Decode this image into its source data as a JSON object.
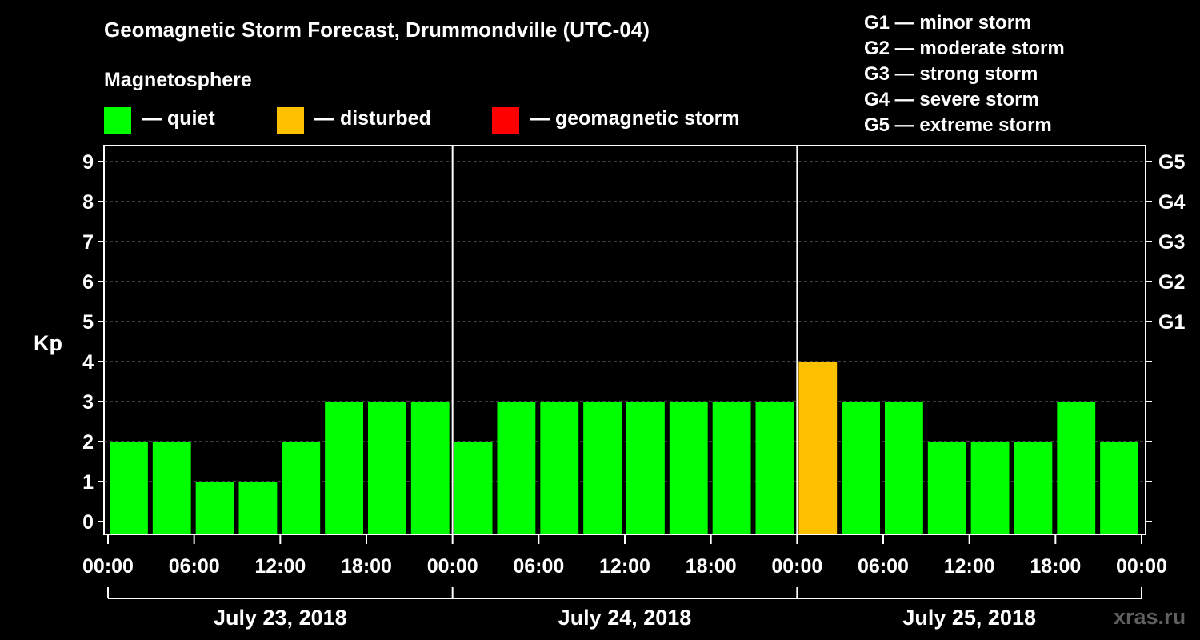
{
  "title": "Geomagnetic Storm Forecast, Drummondville (UTC-04)",
  "magnetosphere_label": "Magnetosphere",
  "legend": [
    {
      "label": "— quiet",
      "color": "#00ff00"
    },
    {
      "label": "— disturbed",
      "color": "#ffc000"
    },
    {
      "label": "— geomagnetic storm",
      "color": "#ff0000"
    }
  ],
  "storm_levels": [
    "G1 — minor storm",
    "G2 — moderate storm",
    "G3 — strong storm",
    "G4 — severe storm",
    "G5 — extreme storm"
  ],
  "watermark": "xras.ru",
  "chart_data": {
    "type": "bar",
    "ylabel": "Kp",
    "ylim": [
      0,
      9
    ],
    "yticks": [
      "0",
      "1",
      "2",
      "3",
      "4",
      "5",
      "6",
      "7",
      "8",
      "9"
    ],
    "right_axis_labels": [
      {
        "kp": 5,
        "label": "G1"
      },
      {
        "kp": 6,
        "label": "G2"
      },
      {
        "kp": 7,
        "label": "G3"
      },
      {
        "kp": 8,
        "label": "G4"
      },
      {
        "kp": 9,
        "label": "G5"
      }
    ],
    "xticks": [
      "00:00",
      "06:00",
      "12:00",
      "18:00",
      "00:00",
      "06:00",
      "12:00",
      "18:00",
      "00:00",
      "06:00",
      "12:00",
      "18:00",
      "00:00"
    ],
    "days": [
      "July 23, 2018",
      "July 24, 2018",
      "July 25, 2018"
    ],
    "hours_range": [
      0,
      72
    ],
    "grid": "horizontal dashed",
    "bars": [
      {
        "start_hour": 0,
        "end_hour": 3,
        "kp": 2,
        "status": "quiet"
      },
      {
        "start_hour": 3,
        "end_hour": 6,
        "kp": 2,
        "status": "quiet"
      },
      {
        "start_hour": 6,
        "end_hour": 9,
        "kp": 1,
        "status": "quiet"
      },
      {
        "start_hour": 9,
        "end_hour": 12,
        "kp": 1,
        "status": "quiet"
      },
      {
        "start_hour": 12,
        "end_hour": 15,
        "kp": 2,
        "status": "quiet"
      },
      {
        "start_hour": 15,
        "end_hour": 18,
        "kp": 3,
        "status": "quiet"
      },
      {
        "start_hour": 18,
        "end_hour": 21,
        "kp": 3,
        "status": "quiet"
      },
      {
        "start_hour": 21,
        "end_hour": 24,
        "kp": 3,
        "status": "quiet"
      },
      {
        "start_hour": 24,
        "end_hour": 27,
        "kp": 2,
        "status": "quiet"
      },
      {
        "start_hour": 27,
        "end_hour": 30,
        "kp": 3,
        "status": "quiet"
      },
      {
        "start_hour": 30,
        "end_hour": 33,
        "kp": 3,
        "status": "quiet"
      },
      {
        "start_hour": 33,
        "end_hour": 36,
        "kp": 3,
        "status": "quiet"
      },
      {
        "start_hour": 36,
        "end_hour": 39,
        "kp": 3,
        "status": "quiet"
      },
      {
        "start_hour": 39,
        "end_hour": 42,
        "kp": 3,
        "status": "quiet"
      },
      {
        "start_hour": 42,
        "end_hour": 45,
        "kp": 3,
        "status": "quiet"
      },
      {
        "start_hour": 45,
        "end_hour": 48,
        "kp": 3,
        "status": "quiet"
      },
      {
        "start_hour": 48,
        "end_hour": 51,
        "kp": 4,
        "status": "disturbed"
      },
      {
        "start_hour": 51,
        "end_hour": 54,
        "kp": 3,
        "status": "quiet"
      },
      {
        "start_hour": 54,
        "end_hour": 57,
        "kp": 3,
        "status": "quiet"
      },
      {
        "start_hour": 57,
        "end_hour": 60,
        "kp": 2,
        "status": "quiet"
      },
      {
        "start_hour": 60,
        "end_hour": 63,
        "kp": 2,
        "status": "quiet"
      },
      {
        "start_hour": 63,
        "end_hour": 66,
        "kp": 2,
        "status": "quiet"
      },
      {
        "start_hour": 66,
        "end_hour": 69,
        "kp": 3,
        "status": "quiet"
      },
      {
        "start_hour": 69,
        "end_hour": 72,
        "kp": 2,
        "status": "quiet"
      }
    ],
    "colors": {
      "quiet": "#00ff00",
      "disturbed": "#ffc000",
      "storm": "#ff0000"
    }
  }
}
